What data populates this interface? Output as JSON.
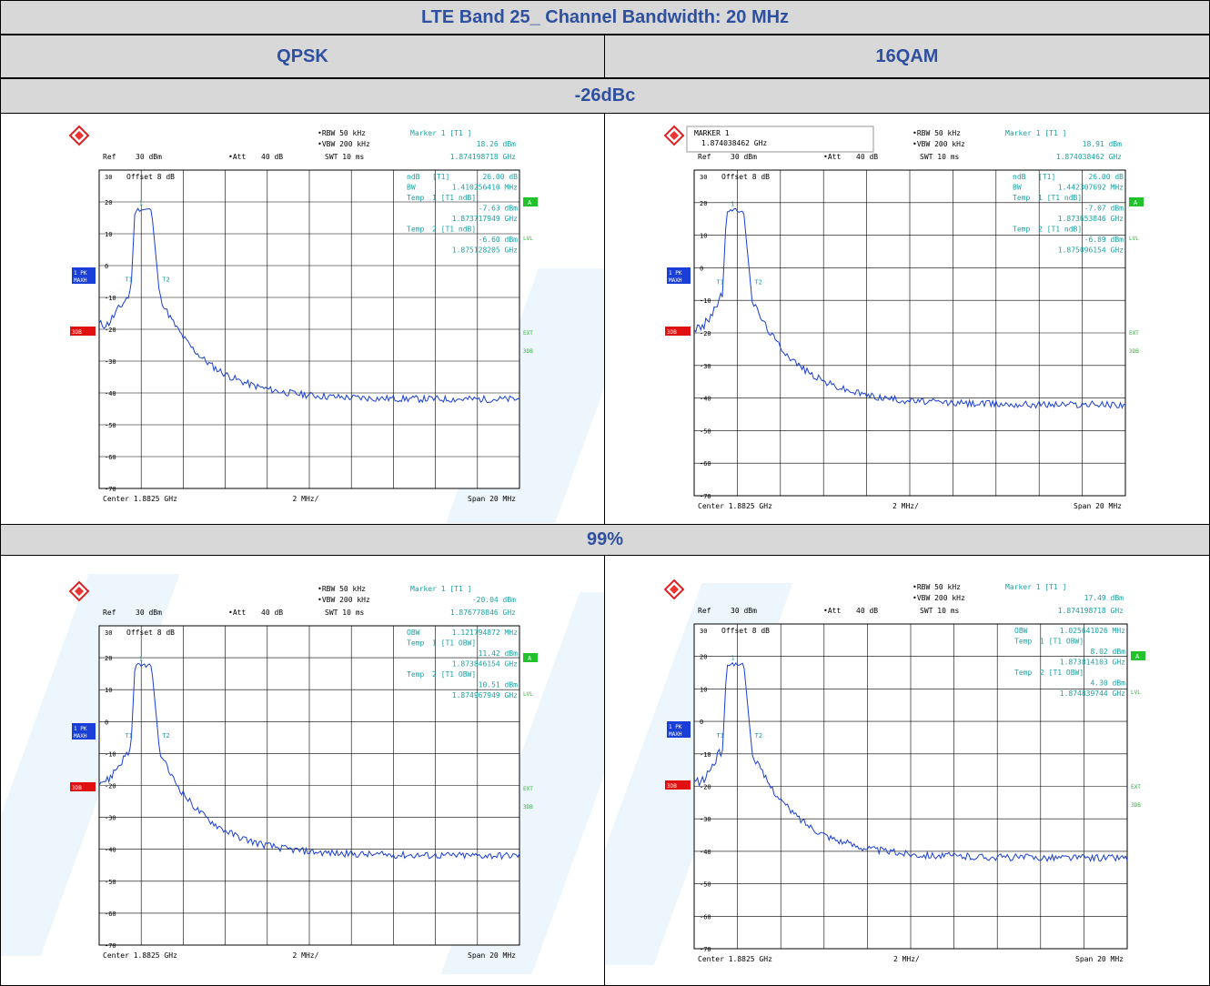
{
  "title": "LTE Band 25_ Channel Bandwidth: 20 MHz",
  "col_qpsk": "QPSK",
  "col_16qam": "16QAM",
  "section_26dbc": "-26dBc",
  "section_99": "99%",
  "colors": {
    "header_text": "#2f4f9f",
    "trace": "#1a3ed8",
    "annotation": "#1aa3a3",
    "green": "#22c22c",
    "red": "#e01010"
  },
  "plots": [
    {
      "id": "p1",
      "marker_box": null,
      "top_left": {
        "ref": "Ref",
        "ref_val": "30 dBm",
        "att": "Att",
        "att_val": "40 dB"
      },
      "rbw": "RBW 50 kHz",
      "vbw": "VBW 200 kHz",
      "swt": "SWT 10 ms",
      "marker_head": "Marker 1 [T1 ]",
      "marker_val": "18.26 dBm",
      "marker_freq": "1.874198718 GHz",
      "info": [
        [
          "ndB",
          "[T1]",
          "26.00 dB"
        ],
        [
          "BW",
          "",
          "1.410256410 MHz"
        ],
        [
          "Temp",
          "1 [T1 ndB]",
          ""
        ],
        [
          "",
          "",
          "-7.63 dBm"
        ],
        [
          "",
          "",
          "1.873717949 GHz"
        ],
        [
          "Temp",
          "2 [T1 ndB]",
          ""
        ],
        [
          "",
          "",
          "-6.60 dBm"
        ],
        [
          "",
          "",
          "1.875128205 GHz"
        ]
      ],
      "offset": "Offset 8 dB",
      "center": "Center 1.8825 GHz",
      "div": "2 MHz/",
      "span": "Span 20 MHz",
      "left_badge": "1 PK MAXH",
      "right_tags": [
        "A",
        "LVL",
        "EXT",
        "3DB"
      ],
      "red_tag": "3DB",
      "markers": [
        "1",
        "T1",
        "T2"
      ]
    },
    {
      "id": "p2",
      "marker_box": {
        "line1": "MARKER 1",
        "line2": "1.874038462 GHz"
      },
      "top_left": {
        "ref": "Ref",
        "ref_val": "30 dBm",
        "att": "Att",
        "att_val": "40 dB"
      },
      "rbw": "RBW 50 kHz",
      "vbw": "VBW 200 kHz",
      "swt": "SWT 10 ms",
      "marker_head": "Marker 1 [T1 ]",
      "marker_val": "18.91 dBm",
      "marker_freq": "1.874038462 GHz",
      "info": [
        [
          "ndB",
          "[T1]",
          "26.00 dB"
        ],
        [
          "BW",
          "",
          "1.442307692 MHz"
        ],
        [
          "Temp",
          "1 [T1 ndB]",
          ""
        ],
        [
          "",
          "",
          "-7.07 dBm"
        ],
        [
          "",
          "",
          "1.873653846 GHz"
        ],
        [
          "Temp",
          "2 [T1 ndB]",
          ""
        ],
        [
          "",
          "",
          "-6.89 dBm"
        ],
        [
          "",
          "",
          "1.875096154 GHz"
        ]
      ],
      "offset": "Offset 8 dB",
      "center": "Center 1.8825 GHz",
      "div": "2 MHz/",
      "span": "Span 20 MHz",
      "left_badge": "1 PK MAXH",
      "right_tags": [
        "A",
        "LVL",
        "EXT",
        "3DB"
      ],
      "red_tag": "3DB",
      "markers": [
        "1",
        "T1",
        "T2"
      ]
    },
    {
      "id": "p3",
      "marker_box": null,
      "top_left": {
        "ref": "Ref",
        "ref_val": "30 dBm",
        "att": "Att",
        "att_val": "40 dB"
      },
      "rbw": "RBW 50 kHz",
      "vbw": "VBW 200 kHz",
      "swt": "SWT 10 ms",
      "marker_head": "Marker 1 [T1 ]",
      "marker_val": "-20.04 dBm",
      "marker_freq": "1.876778846 GHz",
      "info": [
        [
          "OBW",
          "",
          "1.121794872 MHz"
        ],
        [
          "Temp",
          "1 [T1 OBW]",
          ""
        ],
        [
          "",
          "",
          "11.42 dBm"
        ],
        [
          "",
          "",
          "1.873846154 GHz"
        ],
        [
          "Temp",
          "2 [T1 OBW]",
          ""
        ],
        [
          "",
          "",
          "10.51 dBm"
        ],
        [
          "",
          "",
          "1.874967949 GHz"
        ]
      ],
      "offset": "Offset 8 dB",
      "center": "Center 1.8825 GHz",
      "div": "2 MHz/",
      "span": "Span 20 MHz",
      "left_badge": "1 PK MAXH",
      "right_tags": [
        "A",
        "LVL",
        "EXT",
        "3DB"
      ],
      "red_tag": "3DB",
      "markers": [
        "1",
        "T1",
        "T2"
      ]
    },
    {
      "id": "p4",
      "marker_box": null,
      "top_left": {
        "ref": "Ref",
        "ref_val": "30 dBm",
        "att": "Att",
        "att_val": "40 dB"
      },
      "rbw": "RBW 50 kHz",
      "vbw": "VBW 200 kHz",
      "swt": "SWT 10 ms",
      "marker_head": "Marker 1 [T1 ]",
      "marker_val": "17.49 dBm",
      "marker_freq": "1.874198718 GHz",
      "info": [
        [
          "OBW",
          "",
          "1.025641026 MHz"
        ],
        [
          "Temp",
          "1 [T1 OBW]",
          ""
        ],
        [
          "",
          "",
          "8.02 dBm"
        ],
        [
          "",
          "",
          "1.873814103 GHz"
        ],
        [
          "Temp",
          "2 [T1 OBW]",
          ""
        ],
        [
          "",
          "",
          "4.30 dBm"
        ],
        [
          "",
          "",
          "1.874839744 GHz"
        ]
      ],
      "offset": "Offset 8 dB",
      "center": "Center 1.8825 GHz",
      "div": "2 MHz/",
      "span": "Span 20 MHz",
      "left_badge": "1 PK MAXH",
      "right_tags": [
        "A",
        "LVL",
        "EXT",
        "3DB"
      ],
      "red_tag": "3DB",
      "markers": [
        "1",
        "T1",
        "T2"
      ]
    }
  ],
  "y_ticks": [
    "30",
    "20",
    "10",
    "0",
    "-10",
    "-20",
    "-30",
    "-40",
    "-50",
    "-60",
    "-70"
  ]
}
